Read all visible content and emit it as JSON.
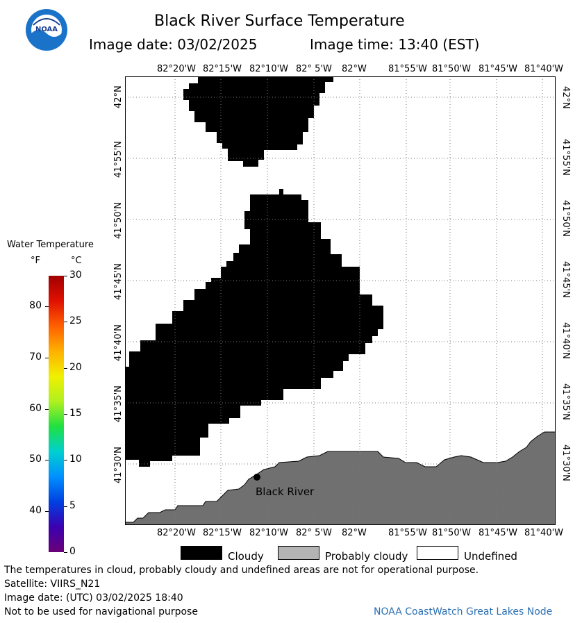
{
  "header": {
    "title": "Black River Surface Temperature",
    "date_label": "Image date: 03/02/2025",
    "time_label": "Image time: 13:40 (EST)",
    "logo_text": "NOAA"
  },
  "legend": {
    "title": "Water Temperature",
    "unit_f": "°F",
    "unit_c": "°C",
    "fahrenheit_ticks": [
      "80",
      "70",
      "60",
      "50",
      "40"
    ],
    "celsius_ticks": [
      "30",
      "25",
      "20",
      "15",
      "10",
      "5",
      "0"
    ],
    "colormap": [
      "#6a0078",
      "#3c00b0",
      "#0040e0",
      "#0090ff",
      "#00d0d0",
      "#20e040",
      "#b0f020",
      "#f0f000",
      "#ffb000",
      "#ff6000",
      "#e01000",
      "#a00000"
    ]
  },
  "map": {
    "top_lon_labels": [
      "82°20'W",
      "82°15'W",
      "82°10'W",
      "82° 5'W",
      "82°W",
      "81°55'W",
      "81°50'W",
      "81°45'W",
      "81°40'W"
    ],
    "bottom_lon_labels": [
      "82°20'W",
      "82°15'W",
      "82°10'W",
      "82° 5'W",
      "82°W",
      "81°55'W",
      "81°50'W",
      "81°45'W",
      "81°40'W"
    ],
    "lat_labels": [
      "42°N",
      "41°55'N",
      "41°50'N",
      "41°45'N",
      "41°40'N",
      "41°35'N",
      "41°30'N"
    ],
    "place_label": "Black River",
    "colors": {
      "cloud": "#000000",
      "land": "#707070",
      "water": "#ffffff",
      "grid": "#777777"
    }
  },
  "key": {
    "cloudy": "Cloudy",
    "probably_cloudy": "Probably cloudy",
    "undefined": "Undefined",
    "colors": {
      "cloudy": "#000000",
      "probably_cloudy": "#b4b4b4",
      "undefined": "#ffffff"
    }
  },
  "footer": {
    "note": "The temperatures in cloud, probably cloudy and undefined areas are not for operational purpose.",
    "satellite": "Satellite: VIIRS_N21",
    "utc_date": "Image date: (UTC) 03/02/2025  18:40",
    "nav_warning": "Not to be used for navigational purpose",
    "credit": "NOAA CoastWatch Great Lakes Node"
  }
}
